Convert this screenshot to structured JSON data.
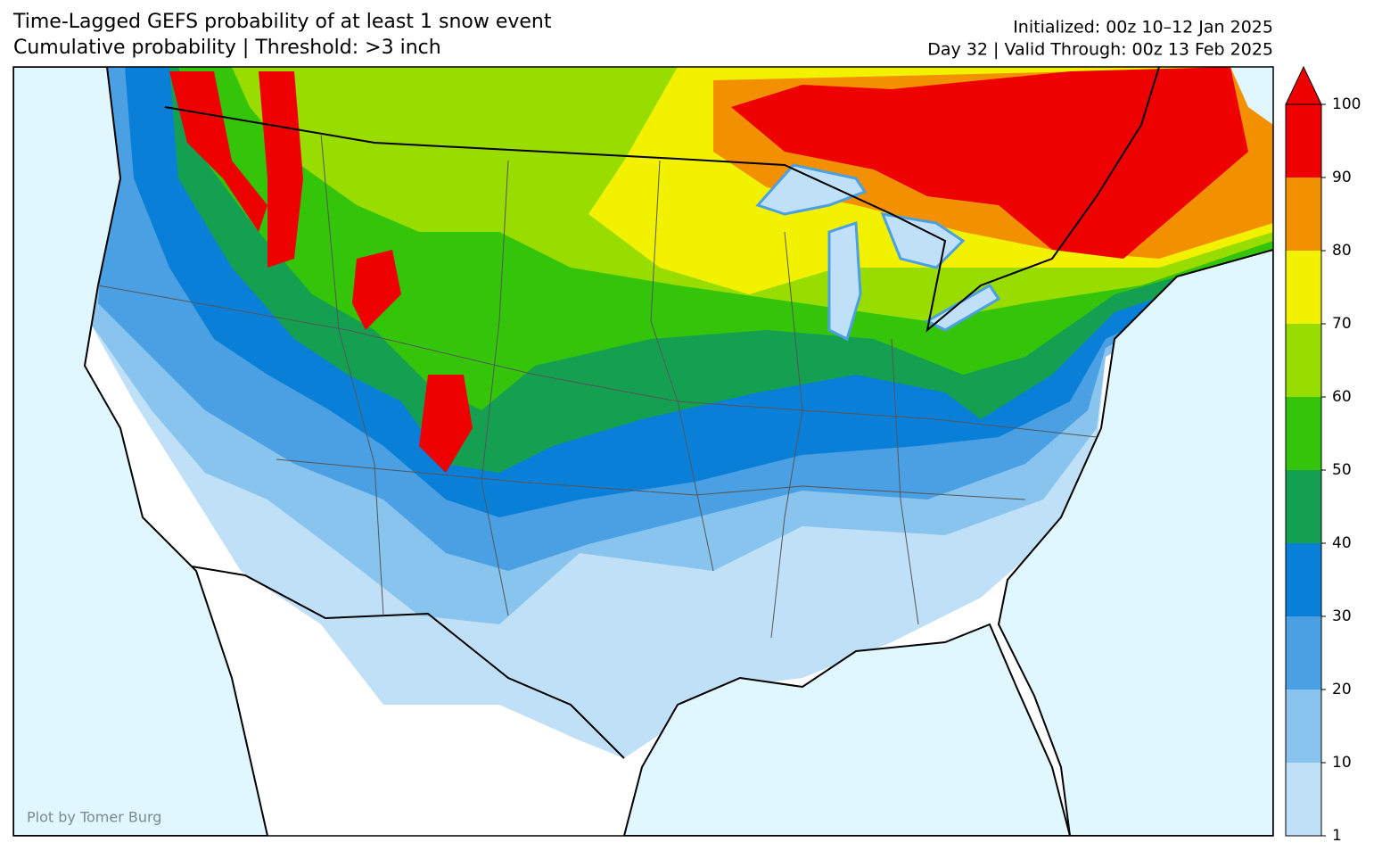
{
  "header": {
    "title": "Time-Lagged GEFS probability of at least 1 snow event",
    "subtitle": "Cumulative probability | Threshold: >3 inch",
    "initialized": "Initialized: 00z 10–12 Jan 2025",
    "valid": "Day 32 | Valid Through: 00z 13 Feb 2025"
  },
  "credit": "Plot by Tomer Burg",
  "colorbar": {
    "ticks": [
      1,
      10,
      20,
      30,
      40,
      50,
      60,
      70,
      80,
      90,
      100
    ],
    "colors": [
      "#c0e0f7",
      "#88c4ee",
      "#4aa0e3",
      "#0a7fd8",
      "#14a050",
      "#34c40a",
      "#98dc00",
      "#f2f200",
      "#f29000",
      "#ee0000"
    ]
  }
}
